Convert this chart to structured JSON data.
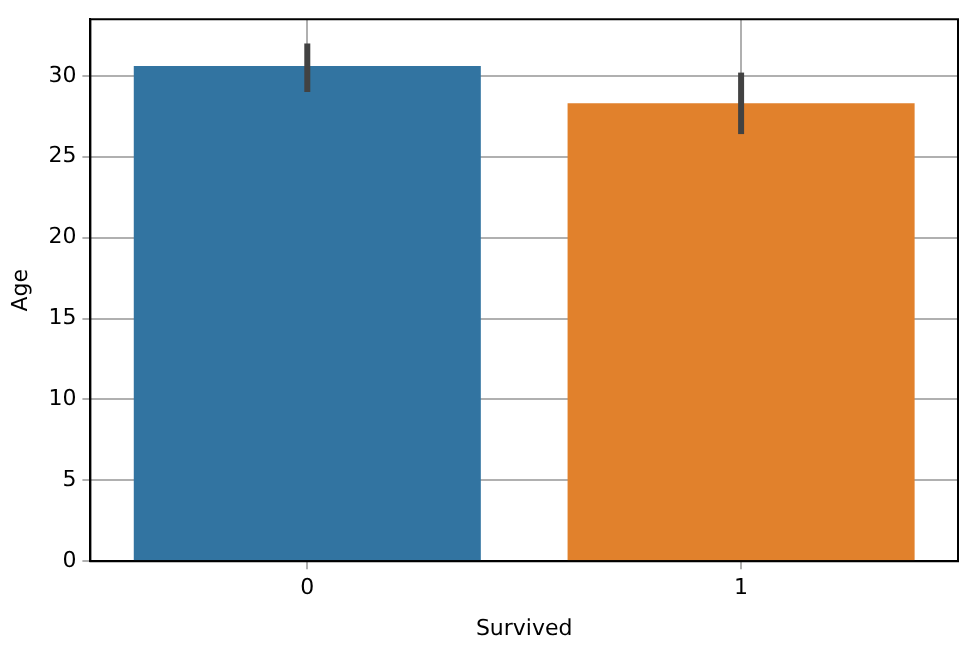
{
  "chart_data": {
    "type": "bar",
    "xlabel": "Survived",
    "ylabel": "Age",
    "categories": [
      "0",
      "1"
    ],
    "values": [
      30.6,
      28.3
    ],
    "colors": [
      "#3274a1",
      "#e1812c"
    ],
    "errors": [
      [
        29.0,
        32.0
      ],
      [
        26.4,
        30.2
      ]
    ],
    "ylim": [
      0,
      33.5
    ],
    "yticks": [
      0,
      5,
      10,
      15,
      20,
      25,
      30
    ],
    "grid": true,
    "legend": false
  }
}
